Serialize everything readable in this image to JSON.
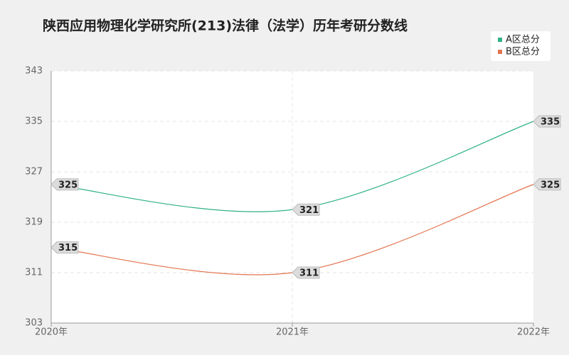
{
  "chart_data": {
    "type": "line",
    "title": "陕西应用物理化学研究所(213)法律（法学）历年考研分数线",
    "categories": [
      "2020年",
      "2021年",
      "2022年"
    ],
    "series": [
      {
        "name": "A区总分",
        "color": "#2fb186",
        "values": [
          325,
          321,
          335
        ]
      },
      {
        "name": "B区总分",
        "color": "#e3744e",
        "values": [
          315,
          311,
          325
        ]
      }
    ],
    "ylim": [
      303,
      343
    ],
    "yticks": [
      303,
      311,
      319,
      327,
      335,
      343
    ],
    "grid": true,
    "smooth": true,
    "legend": "top-right"
  }
}
